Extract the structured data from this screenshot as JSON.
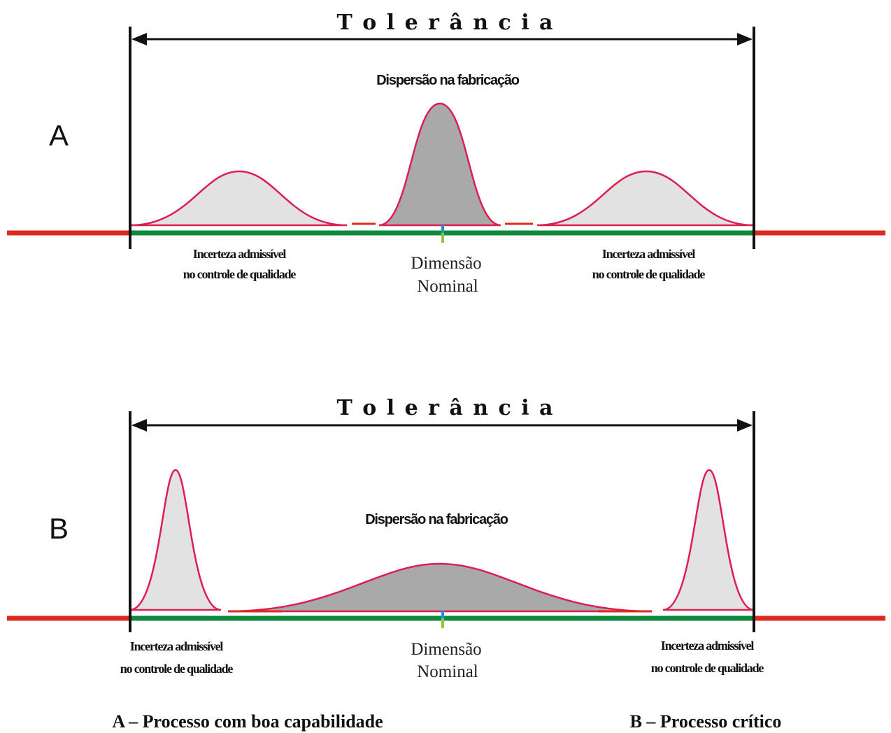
{
  "panel_a": {
    "label": "A",
    "tolerance_title": "T o l e r â n c i a",
    "dispersion_label": "Dispersão na fabricação",
    "uncertainty_left_line1": "Incerteza admissível",
    "uncertainty_left_line2": "no controle de qualidade",
    "uncertainty_right_line1": "Incerteza admissível",
    "uncertainty_right_line2": "no controle de qualidade",
    "nominal_line1": "Dimensão",
    "nominal_line2": "Nominal"
  },
  "panel_b": {
    "label": "B",
    "tolerance_title": "T o l e r â n c i a",
    "dispersion_label": "Dispersão na fabricação",
    "uncertainty_left_line1": "Incerteza admissível",
    "uncertainty_left_line2": "no controle de qualidade",
    "uncertainty_right_line1": "Incerteza admissível",
    "uncertainty_right_line2": "no controle de qualidade",
    "nominal_line1": "Dimensão",
    "nominal_line2": "Nominal"
  },
  "captions": {
    "a": "A – Processo com boa capabilidade",
    "b": "B – Processo crítico"
  },
  "colors": {
    "axis_red": "#dc2b1e",
    "tolerance_green": "#0f8a3c",
    "curve_outline": "#dc1e50",
    "uncertainty_fill": "#e2e2e2",
    "dispersion_fill": "#a9a9a9",
    "nominal_blue": "#1f8fd8",
    "nominal_green": "#8cc63f"
  }
}
